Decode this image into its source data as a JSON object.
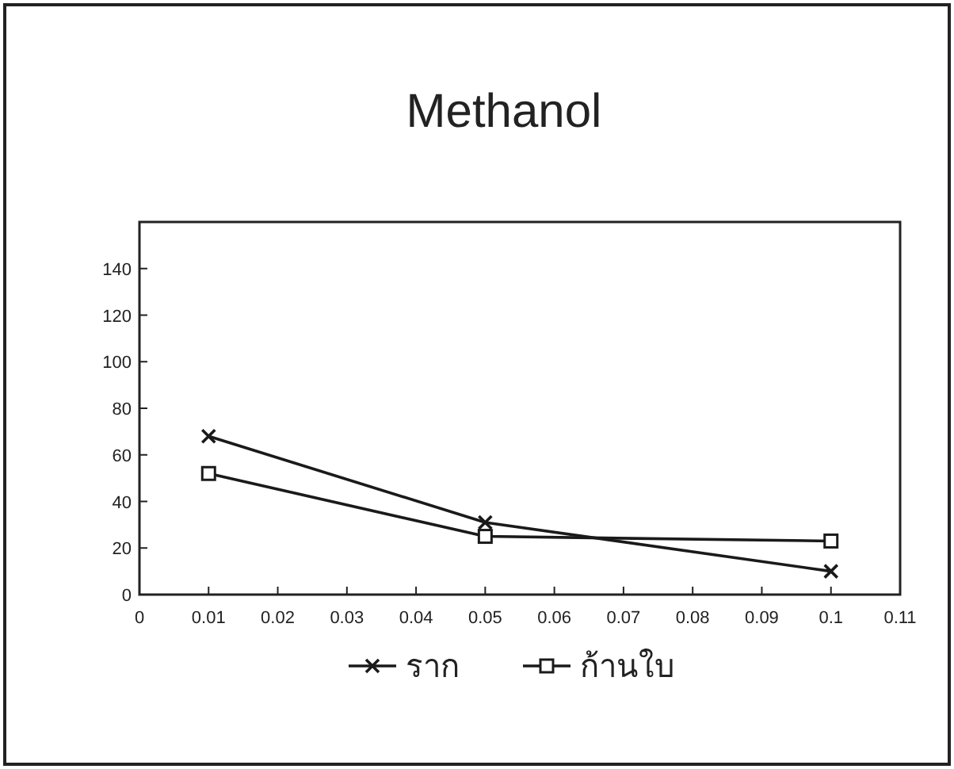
{
  "chart_data": {
    "type": "line",
    "title": "Methanol",
    "x": [
      0.01,
      0.05,
      0.1
    ],
    "series": [
      {
        "name": "ราก",
        "color": "#1a1a1a",
        "marker": "cross",
        "values": [
          68,
          31,
          10
        ]
      },
      {
        "name": "ก้านใบ",
        "color": "#1a1a1a",
        "marker": "square",
        "values": [
          52,
          25,
          23
        ]
      }
    ],
    "xlim": [
      0,
      0.11
    ],
    "xticks": [
      0,
      0.01,
      0.02,
      0.03,
      0.04,
      0.05,
      0.06,
      0.07,
      0.08,
      0.09,
      0.1,
      0.11
    ],
    "ylim": [
      0,
      160
    ],
    "yticks": [
      0,
      20,
      40,
      60,
      80,
      100,
      120,
      140
    ],
    "legend": "bottom",
    "grid": false,
    "line_style": "solid"
  }
}
